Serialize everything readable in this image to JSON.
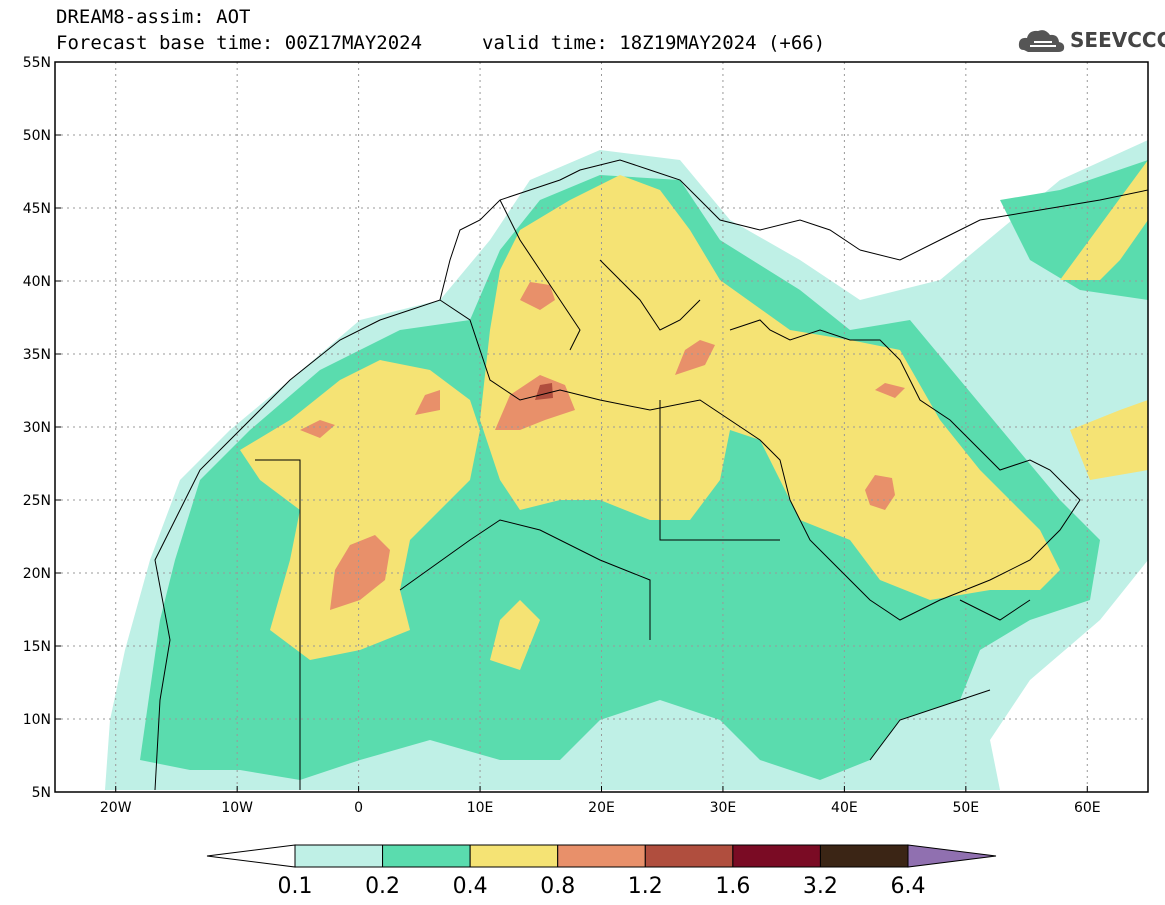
{
  "title": {
    "line1": "DREAM8-assim: AOT",
    "base_time": "Forecast base time: 00Z17MAY2024",
    "valid_time": "valid time: 18Z19MAY2024 (+66)"
  },
  "logo": {
    "text": "SEEVCCC",
    "icon": "cloud-icon"
  },
  "map": {
    "lon_range": [
      -25,
      65
    ],
    "lat_range": [
      5,
      55
    ],
    "lon_ticks": [
      {
        "value": -20,
        "label": "20W"
      },
      {
        "value": -10,
        "label": "10W"
      },
      {
        "value": 0,
        "label": "0"
      },
      {
        "value": 10,
        "label": "10E"
      },
      {
        "value": 20,
        "label": "20E"
      },
      {
        "value": 30,
        "label": "30E"
      },
      {
        "value": 40,
        "label": "40E"
      },
      {
        "value": 50,
        "label": "50E"
      },
      {
        "value": 60,
        "label": "60E"
      }
    ],
    "lat_ticks": [
      {
        "value": 55,
        "label": "55N"
      },
      {
        "value": 50,
        "label": "50N"
      },
      {
        "value": 45,
        "label": "45N"
      },
      {
        "value": 40,
        "label": "40N"
      },
      {
        "value": 35,
        "label": "35N"
      },
      {
        "value": 30,
        "label": "30N"
      },
      {
        "value": 25,
        "label": "25N"
      },
      {
        "value": 20,
        "label": "20N"
      },
      {
        "value": 15,
        "label": "15N"
      },
      {
        "value": 10,
        "label": "10N"
      },
      {
        "value": 5,
        "label": "5N"
      }
    ],
    "gridlines": "dotted"
  },
  "colorbar": {
    "labels": [
      "0.1",
      "0.2",
      "0.4",
      "0.8",
      "1.2",
      "1.6",
      "3.2",
      "6.4"
    ],
    "colors": [
      "#bff0e6",
      "#5adcae",
      "#f5e374",
      "#e8906a",
      "#b04e3e",
      "#7a0b24",
      "#3b2515"
    ],
    "under_color": "#ffffff",
    "over_color": "#9070b0"
  },
  "styles": {
    "c01": "#bff0e6",
    "c02": "#5adcae",
    "c04": "#f5e374",
    "c08": "#e8906a",
    "c12": "#b04e3e",
    "c16": "#7a0b24"
  }
}
